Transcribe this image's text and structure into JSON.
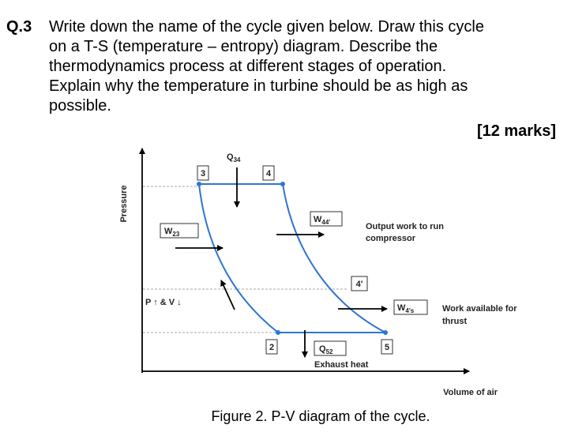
{
  "question": {
    "number": "Q.3",
    "lines": [
      "Write down the name of the cycle given below. Draw this cycle",
      "on a T-S (temperature – entropy) diagram. Describe the",
      "thermodynamics process at different stages of operation.",
      "Explain why the temperature in turbine should be as high as",
      "possible."
    ]
  },
  "marks": "[12 marks]",
  "figure": {
    "y_axis_label": "Pressure",
    "x_axis_label": "Volume of air",
    "caption": "Figure 2. P-V diagram of the cycle.",
    "states": [
      "3",
      "4",
      "4'",
      "2",
      "5"
    ],
    "q34": {
      "symbol": "Q",
      "sub": "34"
    },
    "w23": {
      "symbol": "W",
      "sub": "23"
    },
    "w44": {
      "symbol": "W",
      "sub": "44'"
    },
    "w4s": {
      "symbol": "W",
      "sub": "4's"
    },
    "q52": {
      "symbol": "Q",
      "sub": "52"
    },
    "output_work": [
      "Output work to run",
      "compressor"
    ],
    "work_available": [
      "Work available for",
      "thrust"
    ],
    "compression_note": "P ↑ & V ↓",
    "exhaust_heat": "Exhaust heat"
  }
}
